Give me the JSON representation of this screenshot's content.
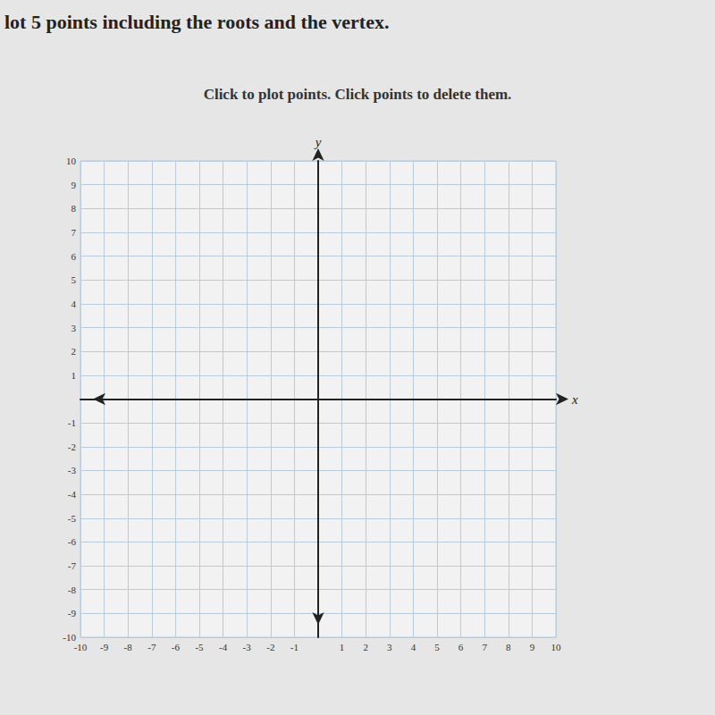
{
  "chart_data": {
    "type": "scatter",
    "instruction": "lot 5 points including the roots and the vertex.",
    "title": "Click to plot points. Click points to delete them.",
    "xlabel": "x",
    "ylabel": "y",
    "x": [],
    "values": [],
    "xlim": [
      -10,
      10
    ],
    "xticks": [
      -10,
      -9,
      -8,
      -7,
      -6,
      -5,
      -4,
      -3,
      -2,
      -1,
      1,
      2,
      3,
      4,
      5,
      6,
      7,
      8,
      9,
      10
    ],
    "ylim": [
      -10,
      10
    ],
    "yticks": [
      -10,
      -9,
      -8,
      -7,
      -6,
      -5,
      -4,
      -3,
      -2,
      -1,
      1,
      2,
      3,
      4,
      5,
      6,
      7,
      8,
      9,
      10
    ],
    "grid": true
  }
}
